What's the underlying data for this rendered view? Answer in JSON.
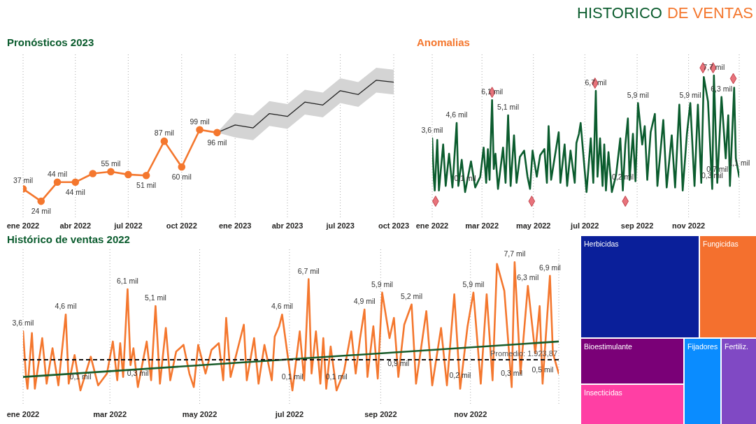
{
  "chart_data": [
    {
      "type": "line",
      "title": "Pronósticos 2023",
      "annotations": [
        "HISTORICO",
        "DE VENTAS"
      ],
      "grid": "x",
      "x": [
        "2022-01",
        "2022-02",
        "2022-03",
        "2022-04",
        "2022-05",
        "2022-06",
        "2022-07",
        "2022-08",
        "2022-09",
        "2022-10",
        "2022-11",
        "2022-12"
      ],
      "xlim": [
        "2022-01",
        "2023-10"
      ],
      "xticks": [
        {
          "value": "2022-01",
          "label": "ene 2022"
        },
        {
          "value": "2022-04",
          "label": "abr 2022"
        },
        {
          "value": "2022-07",
          "label": "jul 2022"
        },
        {
          "value": "2022-10",
          "label": "oct 2022"
        },
        {
          "value": "2023-01",
          "label": "ene 2023"
        },
        {
          "value": "2023-04",
          "label": "abr 2023"
        },
        {
          "value": "2023-07",
          "label": "jul 2023"
        },
        {
          "value": "2023-10",
          "label": "oct 2023"
        }
      ],
      "series": [
        {
          "color": "#f4772e",
          "marker": "circle",
          "values": [
            37,
            24,
            44,
            44,
            53,
            55,
            52,
            51,
            87,
            60,
            99,
            96
          ],
          "value_labels": [
            "37 mil",
            "24 mil",
            "44 mil",
            "44 mil",
            null,
            "55 mil",
            null,
            "51 mil",
            "87 mil",
            "60 mil",
            "99 mil",
            "96 mil"
          ]
        },
        {
          "type": "line",
          "color": "#222222",
          "x": [
            "2022-12",
            "2023-01",
            "2023-02",
            "2023-03",
            "2023-04",
            "2023-05",
            "2023-06",
            "2023-07",
            "2023-08",
            "2023-09",
            "2023-10"
          ],
          "values": [
            96,
            104,
            101,
            116,
            113,
            128,
            125,
            140,
            136,
            151,
            149
          ],
          "lower": [
            96,
            91,
            88,
            103,
            100,
            115,
            112,
            127,
            123,
            138,
            136
          ],
          "upper": [
            96,
            117,
            114,
            129,
            126,
            141,
            138,
            153,
            149,
            164,
            162
          ]
        }
      ]
    },
    {
      "type": "line",
      "title": "Anomalias",
      "grid": "x",
      "x": [
        "2022-01-01",
        "2022-01-03",
        "2022-01-04",
        "2022-01-07",
        "2022-01-09",
        "2022-01-14",
        "2022-01-17",
        "2022-01-21",
        "2022-01-25",
        "2022-01-30",
        "2022-02-01",
        "2022-02-05",
        "2022-02-09",
        "2022-02-16",
        "2022-02-21",
        "2022-02-27",
        "2022-03-03",
        "2022-03-06",
        "2022-03-08",
        "2022-03-10",
        "2022-03-13",
        "2022-03-15",
        "2022-03-17",
        "2022-03-20",
        "2022-03-26",
        "2022-03-29",
        "2022-04-01",
        "2022-04-04",
        "2022-04-08",
        "2022-04-11",
        "2022-04-15",
        "2022-04-20",
        "2022-04-24",
        "2022-04-27",
        "2022-04-30",
        "2022-05-05",
        "2022-05-09",
        "2022-05-14",
        "2022-05-17",
        "2022-05-19",
        "2022-05-22",
        "2022-05-31",
        "2022-06-02",
        "2022-06-07",
        "2022-06-10",
        "2022-06-14",
        "2022-06-19",
        "2022-06-21",
        "2022-06-24",
        "2022-06-26",
        "2022-07-03",
        "2022-07-08",
        "2022-07-11",
        "2022-07-14",
        "2022-07-16",
        "2022-07-19",
        "2022-07-22",
        "2022-07-24",
        "2022-07-26",
        "2022-07-29",
        "2022-08-02",
        "2022-08-07",
        "2022-08-12",
        "2022-08-15",
        "2022-08-18",
        "2022-08-21",
        "2022-08-23",
        "2022-08-27",
        "2022-08-30",
        "2022-09-02",
        "2022-09-07",
        "2022-09-10",
        "2022-09-13",
        "2022-09-17",
        "2022-09-22",
        "2022-09-25",
        "2022-10-02",
        "2022-10-06",
        "2022-10-12",
        "2022-10-16",
        "2022-10-21",
        "2022-10-25",
        "2022-10-30",
        "2022-11-03",
        "2022-11-08",
        "2022-11-12",
        "2022-11-16",
        "2022-11-19",
        "2022-11-24",
        "2022-11-29",
        "2022-12-01",
        "2022-12-05",
        "2022-12-10",
        "2022-12-15",
        "2022-12-18",
        "2022-12-20",
        "2022-12-25",
        "2022-12-27",
        "2022-12-31"
      ],
      "xlim": [
        "2022-01-01",
        "2022-12-31"
      ],
      "xticks": [
        {
          "value": "2022-01-01",
          "label": "ene 2022"
        },
        {
          "value": "2022-03-01",
          "label": "mar 2022"
        },
        {
          "value": "2022-05-01",
          "label": "may 2022"
        },
        {
          "value": "2022-07-01",
          "label": "jul 2022"
        },
        {
          "value": "2022-09-01",
          "label": "sep 2022"
        },
        {
          "value": "2022-11-01",
          "label": "nov 2022"
        }
      ],
      "series": [
        {
          "color": "#0b5c2e",
          "values": [
            3.6,
            0.9,
            0.2,
            3.5,
            0.2,
            3.2,
            0.5,
            2.6,
            0.4,
            4.6,
            0.5,
            2.2,
            0.1,
            2.1,
            0.4,
            1.1,
            3.0,
            0.7,
            2.9,
            0.9,
            6.1,
            1.6,
            2.6,
            0.3,
            3.0,
            0.7,
            5.1,
            0.5,
            3.8,
            0.7,
            2.4,
            2.8,
            1.1,
            0.3,
            2.8,
            1.1,
            2.5,
            2.9,
            0.7,
            4.4,
            0.9,
            4.0,
            0.7,
            3.2,
            0.5,
            2.8,
            0.7,
            3.3,
            3.9,
            4.6,
            0.1,
            3.6,
            0.7,
            6.7,
            1.1,
            3.6,
            0.5,
            3.2,
            0.2,
            2.7,
            0.1,
            1.2,
            3.6,
            0.2,
            3.2,
            4.9,
            0.9,
            3.9,
            0.8,
            5.9,
            3.2,
            4.4,
            0.9,
            4.0,
            5.2,
            0.5,
            4.8,
            0.4,
            3.8,
            0.4,
            5.8,
            0.2,
            3.9,
            5.9,
            0.5,
            5.8,
            0.7,
            7.6,
            6.0,
            0.3,
            7.7,
            0.7,
            6.3,
            2.3,
            5.1,
            0.5,
            6.9,
            2.3,
            1.1
          ],
          "value_labels": [
            "3,6 mil",
            null,
            null,
            null,
            null,
            null,
            null,
            null,
            null,
            "4,6 mil",
            null,
            null,
            "0,1 mil",
            null,
            null,
            null,
            null,
            null,
            null,
            null,
            "6,1 mil",
            null,
            null,
            null,
            null,
            null,
            "5,1 mil",
            null,
            null,
            null,
            null,
            null,
            null,
            null,
            null,
            null,
            null,
            null,
            null,
            null,
            null,
            null,
            null,
            null,
            null,
            null,
            null,
            null,
            null,
            null,
            null,
            null,
            null,
            "6,7 mil",
            null,
            null,
            null,
            null,
            null,
            null,
            null,
            null,
            null,
            "0,2 mil",
            null,
            null,
            null,
            null,
            null,
            "5,9 mil",
            null,
            null,
            null,
            null,
            null,
            null,
            null,
            null,
            null,
            null,
            null,
            null,
            null,
            "5,9 mil",
            null,
            null,
            null,
            null,
            null,
            "0,3 mil",
            "7,7 mil",
            "0,7 mil",
            "6,3 mil",
            null,
            null,
            null,
            null,
            null,
            "1,1 mil"
          ]
        },
        {
          "type": "scatter",
          "color": "#e8737b",
          "marker": "diamond",
          "x": [
            "2022-01-05",
            "2022-03-13",
            "2022-04-29",
            "2022-07-13",
            "2022-08-18",
            "2022-11-18",
            "2022-11-30",
            "2022-12-24"
          ],
          "values": [
            -0.5,
            6.6,
            -0.5,
            7.2,
            -0.5,
            8.2,
            8.2,
            7.5
          ]
        }
      ]
    },
    {
      "type": "line",
      "title": "Histórico de ventas 2022",
      "grid": "x",
      "x": [
        "2022-01-01",
        "2022-01-03",
        "2022-01-04",
        "2022-01-07",
        "2022-01-09",
        "2022-01-14",
        "2022-01-17",
        "2022-01-21",
        "2022-01-25",
        "2022-01-30",
        "2022-02-01",
        "2022-02-05",
        "2022-02-09",
        "2022-02-16",
        "2022-02-21",
        "2022-02-27",
        "2022-03-03",
        "2022-03-06",
        "2022-03-08",
        "2022-03-10",
        "2022-03-13",
        "2022-03-15",
        "2022-03-17",
        "2022-03-20",
        "2022-03-26",
        "2022-03-29",
        "2022-04-01",
        "2022-04-04",
        "2022-04-08",
        "2022-04-11",
        "2022-04-15",
        "2022-04-20",
        "2022-04-24",
        "2022-04-27",
        "2022-04-30",
        "2022-05-05",
        "2022-05-09",
        "2022-05-14",
        "2022-05-17",
        "2022-05-19",
        "2022-05-22",
        "2022-05-31",
        "2022-06-02",
        "2022-06-07",
        "2022-06-10",
        "2022-06-14",
        "2022-06-19",
        "2022-06-21",
        "2022-06-24",
        "2022-06-26",
        "2022-07-03",
        "2022-07-08",
        "2022-07-11",
        "2022-07-14",
        "2022-07-16",
        "2022-07-19",
        "2022-07-22",
        "2022-07-24",
        "2022-07-26",
        "2022-07-29",
        "2022-08-02",
        "2022-08-07",
        "2022-08-12",
        "2022-08-15",
        "2022-08-18",
        "2022-08-21",
        "2022-08-23",
        "2022-08-27",
        "2022-08-30",
        "2022-09-02",
        "2022-09-07",
        "2022-09-10",
        "2022-09-13",
        "2022-09-17",
        "2022-09-22",
        "2022-09-25",
        "2022-10-02",
        "2022-10-06",
        "2022-10-12",
        "2022-10-16",
        "2022-10-21",
        "2022-10-25",
        "2022-10-30",
        "2022-11-03",
        "2022-11-08",
        "2022-11-12",
        "2022-11-16",
        "2022-11-19",
        "2022-11-24",
        "2022-11-29",
        "2022-12-01",
        "2022-12-05",
        "2022-12-10",
        "2022-12-15",
        "2022-12-18",
        "2022-12-20",
        "2022-12-25",
        "2022-12-27",
        "2022-12-31"
      ],
      "xlim": [
        "2022-01-01",
        "2022-12-31"
      ],
      "xticks": [
        {
          "value": "2022-01-01",
          "label": "ene 2022"
        },
        {
          "value": "2022-03-01",
          "label": "mar 2022"
        },
        {
          "value": "2022-05-01",
          "label": "may 2022"
        },
        {
          "value": "2022-07-01",
          "label": "jul 2022"
        },
        {
          "value": "2022-09-01",
          "label": "sep 2022"
        },
        {
          "value": "2022-11-01",
          "label": "nov 2022"
        }
      ],
      "ref_lines": [
        {
          "axis": "y",
          "value": 1.92387,
          "label": "Promedio: 1.923,87",
          "color": "#111111",
          "line_style": "dashed"
        }
      ],
      "series": [
        {
          "color": "#f4772e",
          "values": [
            3.6,
            0.9,
            0.2,
            3.5,
            0.2,
            3.2,
            0.5,
            2.6,
            0.4,
            4.6,
            0.5,
            2.2,
            0.1,
            2.1,
            0.4,
            1.1,
            3.0,
            0.7,
            2.9,
            0.9,
            6.1,
            1.6,
            2.6,
            0.3,
            3.0,
            0.7,
            5.1,
            0.5,
            3.8,
            0.7,
            2.4,
            2.8,
            1.1,
            0.3,
            2.8,
            1.1,
            2.5,
            2.9,
            0.7,
            4.4,
            0.9,
            4.0,
            0.7,
            3.2,
            0.5,
            2.8,
            0.7,
            3.3,
            3.9,
            4.6,
            0.1,
            3.6,
            0.7,
            6.7,
            1.1,
            3.6,
            0.5,
            3.2,
            0.2,
            2.7,
            0.1,
            1.2,
            3.6,
            1.1,
            3.2,
            4.9,
            0.9,
            3.9,
            0.8,
            5.9,
            3.2,
            4.4,
            0.9,
            4.0,
            5.2,
            0.5,
            4.8,
            0.4,
            3.8,
            0.4,
            5.8,
            0.2,
            3.9,
            5.9,
            0.5,
            5.8,
            0.7,
            7.6,
            6.0,
            0.3,
            7.7,
            1.1,
            6.3,
            2.3,
            5.1,
            0.5,
            6.9,
            2.3,
            1.1
          ],
          "value_labels": [
            "3,6 mil",
            null,
            null,
            null,
            null,
            null,
            null,
            null,
            null,
            "4,6 mil",
            null,
            null,
            "0,1 mil",
            null,
            null,
            null,
            null,
            null,
            null,
            null,
            "6,1 mil",
            null,
            null,
            "0,3 mil",
            null,
            null,
            "5,1 mil",
            null,
            null,
            null,
            null,
            null,
            null,
            null,
            null,
            null,
            null,
            null,
            null,
            null,
            null,
            null,
            null,
            null,
            null,
            null,
            null,
            null,
            null,
            "4,6 mil",
            "0,1 mil",
            null,
            null,
            "6,7 mil",
            null,
            null,
            null,
            null,
            null,
            null,
            "0,1 mil",
            null,
            null,
            null,
            null,
            "4,9 mil",
            null,
            null,
            null,
            "5,9 mil",
            null,
            null,
            "0,9 mil",
            null,
            "5,2 mil",
            null,
            null,
            null,
            null,
            null,
            null,
            "0,2 mil",
            null,
            "5,9 mil",
            null,
            null,
            null,
            null,
            null,
            "0,3 mil",
            "7,7 mil",
            null,
            "6,3 mil",
            null,
            null,
            "0,5 mil",
            "6,9 mil",
            null,
            null
          ]
        },
        {
          "type": "line",
          "color": "#185c2a",
          "x": [
            "2022-01-01",
            "2022-12-31"
          ],
          "values": [
            0.9,
            3.0
          ]
        }
      ]
    },
    {
      "type": "other",
      "categories": [
        "Herbicidas",
        "Fungicidas",
        "Bioestimulante",
        "Insecticidas",
        "Fijadores",
        "Fertiliz."
      ],
      "colors": [
        "#0a1f9a",
        "#f4702e",
        "#7a0077",
        "#ff3fa4",
        "#0a8cff",
        "#8049c4"
      ]
    }
  ]
}
